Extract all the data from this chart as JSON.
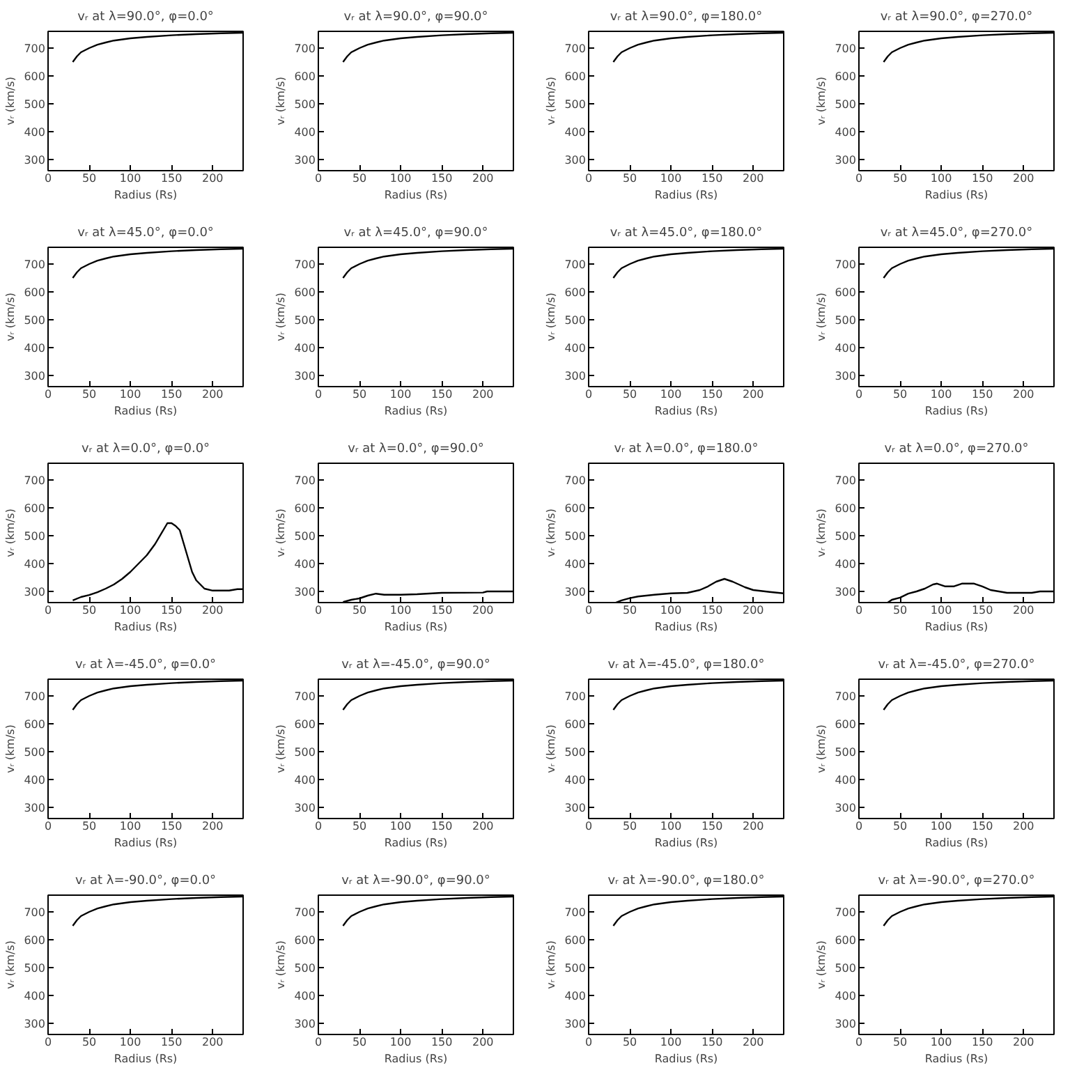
{
  "chart_data": [
    {
      "type": "line",
      "title": "vᵣ at λ=90.0°, φ=0.0°",
      "xlabel": "Radius (Rs)",
      "ylabel": "vᵣ (km/s)",
      "xlim": [
        0,
        237
      ],
      "ylim": [
        260,
        760
      ],
      "xticks": [
        0,
        50,
        100,
        150,
        200
      ],
      "yticks": [
        300,
        400,
        500,
        600,
        700
      ],
      "x": [
        30,
        35,
        40,
        50,
        60,
        70,
        80,
        100,
        120,
        150,
        180,
        210,
        237
      ],
      "values": [
        650,
        670,
        685,
        700,
        712,
        720,
        727,
        735,
        740,
        746,
        750,
        753,
        755
      ]
    },
    {
      "type": "line",
      "title": "vᵣ at λ=90.0°, φ=90.0°",
      "xlabel": "Radius (Rs)",
      "ylabel": "vᵣ (km/s)",
      "xlim": [
        0,
        237
      ],
      "ylim": [
        260,
        760
      ],
      "xticks": [
        0,
        50,
        100,
        150,
        200
      ],
      "yticks": [
        300,
        400,
        500,
        600,
        700
      ],
      "x": [
        30,
        35,
        40,
        50,
        60,
        70,
        80,
        100,
        120,
        150,
        180,
        210,
        237
      ],
      "values": [
        650,
        670,
        685,
        700,
        712,
        720,
        727,
        735,
        740,
        746,
        750,
        753,
        755
      ]
    },
    {
      "type": "line",
      "title": "vᵣ at λ=90.0°, φ=180.0°",
      "xlabel": "Radius (Rs)",
      "ylabel": "vᵣ (km/s)",
      "xlim": [
        0,
        237
      ],
      "ylim": [
        260,
        760
      ],
      "xticks": [
        0,
        50,
        100,
        150,
        200
      ],
      "yticks": [
        300,
        400,
        500,
        600,
        700
      ],
      "x": [
        30,
        35,
        40,
        50,
        60,
        70,
        80,
        100,
        120,
        150,
        180,
        210,
        237
      ],
      "values": [
        650,
        670,
        685,
        700,
        712,
        720,
        727,
        735,
        740,
        746,
        750,
        753,
        755
      ]
    },
    {
      "type": "line",
      "title": "vᵣ at λ=90.0°, φ=270.0°",
      "xlabel": "Radius (Rs)",
      "ylabel": "vᵣ (km/s)",
      "xlim": [
        0,
        237
      ],
      "ylim": [
        260,
        760
      ],
      "xticks": [
        0,
        50,
        100,
        150,
        200
      ],
      "yticks": [
        300,
        400,
        500,
        600,
        700
      ],
      "x": [
        30,
        35,
        40,
        50,
        60,
        70,
        80,
        100,
        120,
        150,
        180,
        210,
        237
      ],
      "values": [
        650,
        670,
        685,
        700,
        712,
        720,
        727,
        735,
        740,
        746,
        750,
        753,
        755
      ]
    },
    {
      "type": "line",
      "title": "vᵣ at λ=45.0°, φ=0.0°",
      "xlabel": "Radius (Rs)",
      "ylabel": "vᵣ (km/s)",
      "xlim": [
        0,
        237
      ],
      "ylim": [
        260,
        760
      ],
      "xticks": [
        0,
        50,
        100,
        150,
        200
      ],
      "yticks": [
        300,
        400,
        500,
        600,
        700
      ],
      "x": [
        30,
        35,
        40,
        50,
        60,
        70,
        80,
        100,
        120,
        150,
        180,
        210,
        237
      ],
      "values": [
        650,
        670,
        685,
        700,
        712,
        720,
        727,
        735,
        740,
        746,
        750,
        753,
        755
      ]
    },
    {
      "type": "line",
      "title": "vᵣ at λ=45.0°, φ=90.0°",
      "xlabel": "Radius (Rs)",
      "ylabel": "vᵣ (km/s)",
      "xlim": [
        0,
        237
      ],
      "ylim": [
        260,
        760
      ],
      "xticks": [
        0,
        50,
        100,
        150,
        200
      ],
      "yticks": [
        300,
        400,
        500,
        600,
        700
      ],
      "x": [
        30,
        35,
        40,
        50,
        60,
        70,
        80,
        100,
        120,
        150,
        180,
        210,
        237
      ],
      "values": [
        650,
        670,
        685,
        700,
        712,
        720,
        727,
        735,
        740,
        746,
        750,
        753,
        755
      ]
    },
    {
      "type": "line",
      "title": "vᵣ at λ=45.0°, φ=180.0°",
      "xlabel": "Radius (Rs)",
      "ylabel": "vᵣ (km/s)",
      "xlim": [
        0,
        237
      ],
      "ylim": [
        260,
        760
      ],
      "xticks": [
        0,
        50,
        100,
        150,
        200
      ],
      "yticks": [
        300,
        400,
        500,
        600,
        700
      ],
      "x": [
        30,
        35,
        40,
        50,
        60,
        70,
        80,
        100,
        120,
        150,
        180,
        210,
        237
      ],
      "values": [
        650,
        670,
        685,
        700,
        712,
        720,
        727,
        735,
        740,
        746,
        750,
        753,
        755
      ]
    },
    {
      "type": "line",
      "title": "vᵣ at λ=45.0°, φ=270.0°",
      "xlabel": "Radius (Rs)",
      "ylabel": "vᵣ (km/s)",
      "xlim": [
        0,
        237
      ],
      "ylim": [
        260,
        760
      ],
      "xticks": [
        0,
        50,
        100,
        150,
        200
      ],
      "yticks": [
        300,
        400,
        500,
        600,
        700
      ],
      "x": [
        30,
        35,
        40,
        50,
        60,
        70,
        80,
        100,
        120,
        150,
        180,
        210,
        237
      ],
      "values": [
        650,
        670,
        685,
        700,
        712,
        720,
        727,
        735,
        740,
        746,
        750,
        753,
        755
      ]
    },
    {
      "type": "line",
      "title": "vᵣ at λ=0.0°, φ=0.0°",
      "xlabel": "Radius (Rs)",
      "ylabel": "vᵣ (km/s)",
      "xlim": [
        0,
        237
      ],
      "ylim": [
        260,
        760
      ],
      "xticks": [
        0,
        50,
        100,
        150,
        200
      ],
      "yticks": [
        300,
        400,
        500,
        600,
        700
      ],
      "x": [
        30,
        40,
        50,
        60,
        70,
        80,
        90,
        100,
        110,
        120,
        130,
        140,
        145,
        150,
        155,
        160,
        165,
        170,
        175,
        180,
        190,
        200,
        220,
        230,
        237
      ],
      "values": [
        268,
        280,
        287,
        297,
        310,
        325,
        345,
        370,
        400,
        430,
        470,
        520,
        545,
        545,
        535,
        520,
        470,
        420,
        370,
        340,
        310,
        303,
        303,
        308,
        308
      ]
    },
    {
      "type": "line",
      "title": "vᵣ at λ=0.0°, φ=90.0°",
      "xlabel": "Radius (Rs)",
      "ylabel": "vᵣ (km/s)",
      "xlim": [
        0,
        237
      ],
      "ylim": [
        260,
        760
      ],
      "xticks": [
        0,
        50,
        100,
        150,
        200
      ],
      "yticks": [
        300,
        400,
        500,
        600,
        700
      ],
      "x": [
        30,
        40,
        50,
        60,
        70,
        80,
        100,
        120,
        150,
        200,
        205,
        237
      ],
      "values": [
        262,
        270,
        275,
        285,
        292,
        288,
        288,
        290,
        295,
        296,
        300,
        300
      ]
    },
    {
      "type": "line",
      "title": "vᵣ at λ=0.0°, φ=180.0°",
      "xlabel": "Radius (Rs)",
      "ylabel": "vᵣ (km/s)",
      "xlim": [
        0,
        237
      ],
      "ylim": [
        260,
        760
      ],
      "xticks": [
        0,
        50,
        100,
        150,
        200
      ],
      "yticks": [
        300,
        400,
        500,
        600,
        700
      ],
      "x": [
        33,
        40,
        50,
        60,
        80,
        100,
        120,
        135,
        145,
        155,
        165,
        175,
        190,
        200,
        220,
        237
      ],
      "values": [
        260,
        268,
        276,
        282,
        288,
        293,
        295,
        305,
        318,
        335,
        345,
        335,
        315,
        305,
        298,
        293
      ]
    },
    {
      "type": "line",
      "title": "vᵣ at λ=0.0°, φ=270.0°",
      "xlabel": "Radius (Rs)",
      "ylabel": "vᵣ (km/s)",
      "xlim": [
        0,
        237
      ],
      "ylim": [
        260,
        760
      ],
      "xticks": [
        0,
        50,
        100,
        150,
        200
      ],
      "yticks": [
        300,
        400,
        500,
        600,
        700
      ],
      "x": [
        35,
        40,
        50,
        60,
        70,
        80,
        90,
        95,
        105,
        115,
        125,
        140,
        150,
        160,
        180,
        210,
        220,
        237
      ],
      "values": [
        260,
        270,
        278,
        292,
        300,
        310,
        325,
        328,
        318,
        318,
        328,
        328,
        318,
        305,
        295,
        295,
        300,
        300
      ]
    },
    {
      "type": "line",
      "title": "vᵣ at λ=-45.0°, φ=0.0°",
      "xlabel": "Radius (Rs)",
      "ylabel": "vᵣ (km/s)",
      "xlim": [
        0,
        237
      ],
      "ylim": [
        260,
        760
      ],
      "xticks": [
        0,
        50,
        100,
        150,
        200
      ],
      "yticks": [
        300,
        400,
        500,
        600,
        700
      ],
      "x": [
        30,
        35,
        40,
        50,
        60,
        70,
        80,
        100,
        120,
        150,
        180,
        210,
        237
      ],
      "values": [
        650,
        670,
        685,
        700,
        712,
        720,
        727,
        735,
        740,
        746,
        750,
        753,
        755
      ]
    },
    {
      "type": "line",
      "title": "vᵣ at λ=-45.0°, φ=90.0°",
      "xlabel": "Radius (Rs)",
      "ylabel": "vᵣ (km/s)",
      "xlim": [
        0,
        237
      ],
      "ylim": [
        260,
        760
      ],
      "xticks": [
        0,
        50,
        100,
        150,
        200
      ],
      "yticks": [
        300,
        400,
        500,
        600,
        700
      ],
      "x": [
        30,
        35,
        40,
        50,
        60,
        70,
        80,
        100,
        120,
        150,
        180,
        210,
        237
      ],
      "values": [
        650,
        670,
        685,
        700,
        712,
        720,
        727,
        735,
        740,
        746,
        750,
        753,
        755
      ]
    },
    {
      "type": "line",
      "title": "vᵣ at λ=-45.0°, φ=180.0°",
      "xlabel": "Radius (Rs)",
      "ylabel": "vᵣ (km/s)",
      "xlim": [
        0,
        237
      ],
      "ylim": [
        260,
        760
      ],
      "xticks": [
        0,
        50,
        100,
        150,
        200
      ],
      "yticks": [
        300,
        400,
        500,
        600,
        700
      ],
      "x": [
        30,
        35,
        40,
        50,
        60,
        70,
        80,
        100,
        120,
        150,
        180,
        210,
        237
      ],
      "values": [
        650,
        670,
        685,
        700,
        712,
        720,
        727,
        735,
        740,
        746,
        750,
        753,
        755
      ]
    },
    {
      "type": "line",
      "title": "vᵣ at λ=-45.0°, φ=270.0°",
      "xlabel": "Radius (Rs)",
      "ylabel": "vᵣ (km/s)",
      "xlim": [
        0,
        237
      ],
      "ylim": [
        260,
        760
      ],
      "xticks": [
        0,
        50,
        100,
        150,
        200
      ],
      "yticks": [
        300,
        400,
        500,
        600,
        700
      ],
      "x": [
        30,
        35,
        40,
        50,
        60,
        70,
        80,
        100,
        120,
        150,
        180,
        210,
        237
      ],
      "values": [
        650,
        670,
        685,
        700,
        712,
        720,
        727,
        735,
        740,
        746,
        750,
        753,
        755
      ]
    },
    {
      "type": "line",
      "title": "vᵣ at λ=-90.0°, φ=0.0°",
      "xlabel": "Radius (Rs)",
      "ylabel": "vᵣ (km/s)",
      "xlim": [
        0,
        237
      ],
      "ylim": [
        260,
        760
      ],
      "xticks": [
        0,
        50,
        100,
        150,
        200
      ],
      "yticks": [
        300,
        400,
        500,
        600,
        700
      ],
      "x": [
        30,
        35,
        40,
        50,
        60,
        70,
        80,
        100,
        120,
        150,
        180,
        210,
        237
      ],
      "values": [
        650,
        670,
        685,
        700,
        712,
        720,
        727,
        735,
        740,
        746,
        750,
        753,
        755
      ]
    },
    {
      "type": "line",
      "title": "vᵣ at λ=-90.0°, φ=90.0°",
      "xlabel": "Radius (Rs)",
      "ylabel": "vᵣ (km/s)",
      "xlim": [
        0,
        237
      ],
      "ylim": [
        260,
        760
      ],
      "xticks": [
        0,
        50,
        100,
        150,
        200
      ],
      "yticks": [
        300,
        400,
        500,
        600,
        700
      ],
      "x": [
        30,
        35,
        40,
        50,
        60,
        70,
        80,
        100,
        120,
        150,
        180,
        210,
        237
      ],
      "values": [
        650,
        670,
        685,
        700,
        712,
        720,
        727,
        735,
        740,
        746,
        750,
        753,
        755
      ]
    },
    {
      "type": "line",
      "title": "vᵣ at λ=-90.0°, φ=180.0°",
      "xlabel": "Radius (Rs)",
      "ylabel": "vᵣ (km/s)",
      "xlim": [
        0,
        237
      ],
      "ylim": [
        260,
        760
      ],
      "xticks": [
        0,
        50,
        100,
        150,
        200
      ],
      "yticks": [
        300,
        400,
        500,
        600,
        700
      ],
      "x": [
        30,
        35,
        40,
        50,
        60,
        70,
        80,
        100,
        120,
        150,
        180,
        210,
        237
      ],
      "values": [
        650,
        670,
        685,
        700,
        712,
        720,
        727,
        735,
        740,
        746,
        750,
        753,
        755
      ]
    },
    {
      "type": "line",
      "title": "vᵣ at λ=-90.0°, φ=270.0°",
      "xlabel": "Radius (Rs)",
      "ylabel": "vᵣ (km/s)",
      "xlim": [
        0,
        237
      ],
      "ylim": [
        260,
        760
      ],
      "xticks": [
        0,
        50,
        100,
        150,
        200
      ],
      "yticks": [
        300,
        400,
        500,
        600,
        700
      ],
      "x": [
        30,
        35,
        40,
        50,
        60,
        70,
        80,
        100,
        120,
        150,
        180,
        210,
        237
      ],
      "values": [
        650,
        670,
        685,
        700,
        712,
        720,
        727,
        735,
        740,
        746,
        750,
        753,
        755
      ]
    }
  ]
}
